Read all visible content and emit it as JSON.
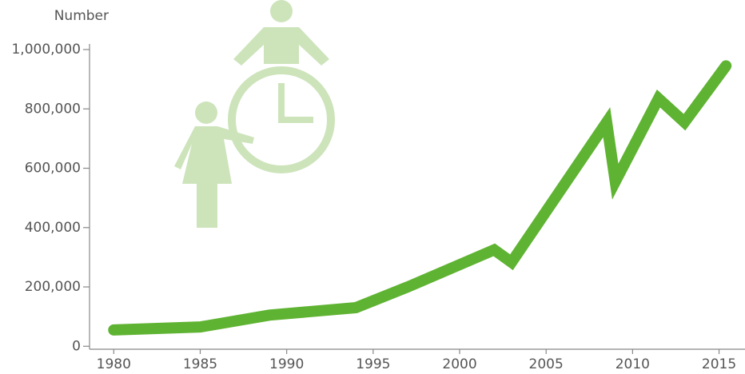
{
  "chart_data": {
    "type": "line",
    "y_axis_label": "Number",
    "x": [
      1980,
      1985,
      1989,
      1994,
      1997,
      2002,
      2003,
      2008.5,
      2009,
      2011.5,
      2013,
      2015.4
    ],
    "series": [
      {
        "color": "#5fb332",
        "values": [
          55000,
          65000,
          105000,
          130000,
          200000,
          325000,
          283000,
          755000,
          555000,
          835000,
          755000,
          945000
        ]
      }
    ],
    "xlim": [
      1978.6,
      2016.5
    ],
    "xticks": [
      1980,
      1985,
      1990,
      1995,
      2000,
      2005,
      2010,
      2015
    ],
    "ylim": [
      -10000,
      1000000
    ],
    "yticks": [
      0,
      {
        "value": 200000,
        "label": "200,000"
      },
      {
        "value": 400000,
        "label": "400,000"
      },
      {
        "value": 600000,
        "label": "600,000"
      },
      {
        "value": 800000,
        "label": "800,000"
      },
      {
        "value": 1000000,
        "label": "1,000,000"
      }
    ]
  }
}
